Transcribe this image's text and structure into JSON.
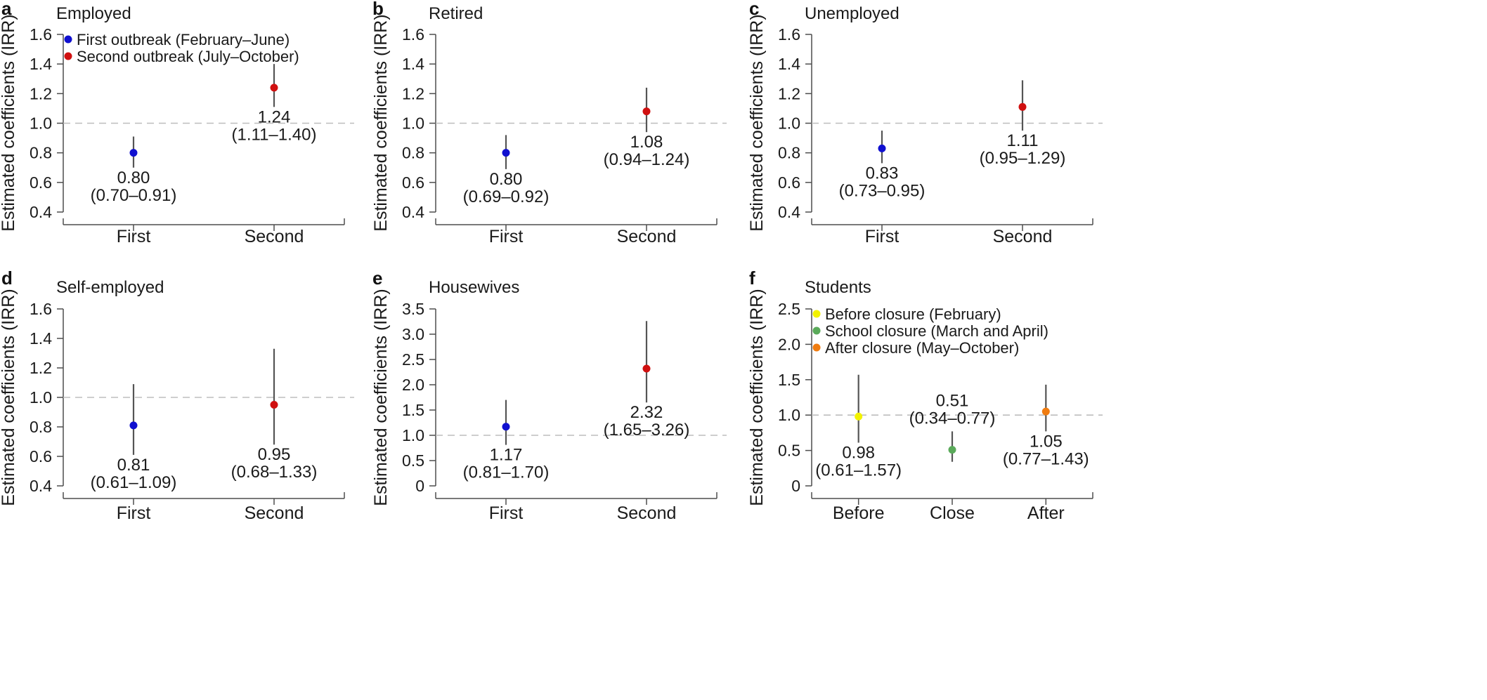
{
  "chart_data": [
    {
      "panel": "a",
      "type": "scatter",
      "title": "Employed",
      "ylabel": "Estimated coefficients (IRR)",
      "ylim": [
        0.4,
        1.6
      ],
      "yticks": [
        "0.4",
        "0.6",
        "0.8",
        "1.0",
        "1.2",
        "1.4",
        "1.6"
      ],
      "reference": 1.0,
      "categories": [
        "First",
        "Second"
      ],
      "points": [
        {
          "category": "First",
          "value": 0.8,
          "lower": 0.7,
          "upper": 0.91,
          "color": "#1010d0",
          "label": "0.80",
          "ci_label": "(0.70–0.91)",
          "label_pos": "below"
        },
        {
          "category": "Second",
          "value": 1.24,
          "lower": 1.11,
          "upper": 1.4,
          "color": "#d01010",
          "label": "1.24",
          "ci_label": "(1.11–1.40)",
          "label_pos": "below"
        }
      ],
      "legend": [
        {
          "label": "First outbreak (February–June)",
          "color": "#1010d0"
        },
        {
          "label": "Second outbreak (July–October)",
          "color": "#d01010"
        }
      ]
    },
    {
      "panel": "b",
      "type": "scatter",
      "title": "Retired",
      "ylabel": "Estimated coefficients (IRR)",
      "ylim": [
        0.4,
        1.6
      ],
      "yticks": [
        "0.4",
        "0.6",
        "0.8",
        "1.0",
        "1.2",
        "1.4",
        "1.6"
      ],
      "reference": 1.0,
      "categories": [
        "First",
        "Second"
      ],
      "points": [
        {
          "category": "First",
          "value": 0.8,
          "lower": 0.69,
          "upper": 0.92,
          "color": "#1010d0",
          "label": "0.80",
          "ci_label": "(0.69–0.92)",
          "label_pos": "below"
        },
        {
          "category": "Second",
          "value": 1.08,
          "lower": 0.94,
          "upper": 1.24,
          "color": "#d01010",
          "label": "1.08",
          "ci_label": "(0.94–1.24)",
          "label_pos": "below"
        }
      ],
      "legend": []
    },
    {
      "panel": "c",
      "type": "scatter",
      "title": "Unemployed",
      "ylabel": "Estimated coefficients (IRR)",
      "ylim": [
        0.4,
        1.6
      ],
      "yticks": [
        "0.4",
        "0.6",
        "0.8",
        "1.0",
        "1.2",
        "1.4",
        "1.6"
      ],
      "reference": 1.0,
      "categories": [
        "First",
        "Second"
      ],
      "points": [
        {
          "category": "First",
          "value": 0.83,
          "lower": 0.73,
          "upper": 0.95,
          "color": "#1010d0",
          "label": "0.83",
          "ci_label": "(0.73–0.95)",
          "label_pos": "below"
        },
        {
          "category": "Second",
          "value": 1.11,
          "lower": 0.95,
          "upper": 1.29,
          "color": "#d01010",
          "label": "1.11",
          "ci_label": "(0.95–1.29)",
          "label_pos": "below"
        }
      ],
      "legend": []
    },
    {
      "panel": "d",
      "type": "scatter",
      "title": "Self-employed",
      "ylabel": "Estimated coefficients (IRR)",
      "ylim": [
        0.4,
        1.6
      ],
      "yticks": [
        "0.4",
        "0.6",
        "0.8",
        "1.0",
        "1.2",
        "1.4",
        "1.6"
      ],
      "reference": 1.0,
      "categories": [
        "First",
        "Second"
      ],
      "points": [
        {
          "category": "First",
          "value": 0.81,
          "lower": 0.61,
          "upper": 1.09,
          "color": "#1010d0",
          "label": "0.81",
          "ci_label": "(0.61–1.09)",
          "label_pos": "below"
        },
        {
          "category": "Second",
          "value": 0.95,
          "lower": 0.68,
          "upper": 1.33,
          "color": "#d01010",
          "label": "0.95",
          "ci_label": "(0.68–1.33)",
          "label_pos": "below"
        }
      ],
      "legend": []
    },
    {
      "panel": "e",
      "type": "scatter",
      "title": "Housewives",
      "ylabel": "Estimated coefficients (IRR)",
      "ylim": [
        0,
        3.5
      ],
      "yticks": [
        "0",
        "0.5",
        "1.0",
        "1.5",
        "2.0",
        "2.5",
        "3.0",
        "3.5"
      ],
      "reference": 1.0,
      "categories": [
        "First",
        "Second"
      ],
      "points": [
        {
          "category": "First",
          "value": 1.17,
          "lower": 0.81,
          "upper": 1.7,
          "color": "#1010d0",
          "label": "1.17",
          "ci_label": "(0.81–1.70)",
          "label_pos": "below"
        },
        {
          "category": "Second",
          "value": 2.32,
          "lower": 1.65,
          "upper": 3.26,
          "color": "#d01010",
          "label": "2.32",
          "ci_label": "(1.65–3.26)",
          "label_pos": "below"
        }
      ],
      "legend": []
    },
    {
      "panel": "f",
      "type": "scatter",
      "title": "Students",
      "ylabel": "Estimated coefficients (IRR)",
      "ylim": [
        0,
        2.5
      ],
      "yticks": [
        "0",
        "0.5",
        "1.0",
        "1.5",
        "2.0",
        "2.5"
      ],
      "reference": 1.0,
      "categories": [
        "Before",
        "Close",
        "After"
      ],
      "points": [
        {
          "category": "Before",
          "value": 0.98,
          "lower": 0.61,
          "upper": 1.57,
          "color": "#f2f200",
          "label": "0.98",
          "ci_label": "(0.61–1.57)",
          "label_pos": "below"
        },
        {
          "category": "Close",
          "value": 0.51,
          "lower": 0.34,
          "upper": 0.77,
          "color": "#5aaa5a",
          "label": "0.51",
          "ci_label": "(0.34–0.77)",
          "label_pos": "above"
        },
        {
          "category": "After",
          "value": 1.05,
          "lower": 0.77,
          "upper": 1.43,
          "color": "#f07c10",
          "label": "1.05",
          "ci_label": "(0.77–1.43)",
          "label_pos": "below"
        }
      ],
      "legend": [
        {
          "label": "Before closure (February)",
          "color": "#f2f200"
        },
        {
          "label": "School closure (March and April)",
          "color": "#5aaa5a"
        },
        {
          "label": "After closure (May–October)",
          "color": "#f07c10"
        }
      ]
    }
  ]
}
